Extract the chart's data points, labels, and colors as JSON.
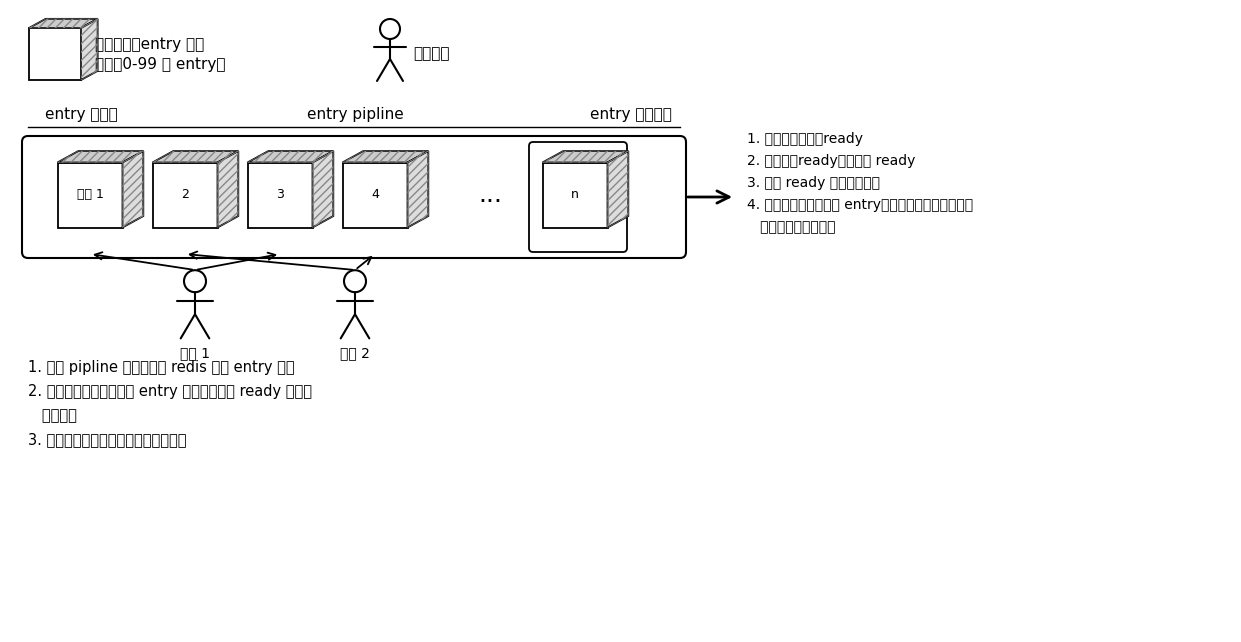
{
  "bg_color": "#ffffff",
  "legend_cube_text1": "一个有序的entry 批次",
  "legend_cube_text2": "（例如0-99 号 entry）",
  "legend_person_text": "一个协程",
  "pipeline_label_left": "entry 构造端",
  "pipeline_label_center": "entry pipline",
  "pipeline_label_right": "entry 序列化端",
  "box_labels": [
    "批次 1",
    "2",
    "3",
    "4",
    "n"
  ],
  "dots_label": "...",
  "coroutine_labels": [
    "协程 1",
    "协程 2"
  ],
  "right_notes_lines": [
    "1. 检查该批次是否ready",
    "2. 如果没有ready就等待其 ready",
    "3. 如果 ready 就开始序列化",
    "4. 序列化该批次的每个 entry完毕后通知构造该批次的",
    "   协程处理下一个批次"
  ],
  "bottom_notes_lines": [
    "1. 使用 pipline 的方式请求 redis 构造 entry 批次",
    "2. 构造完该批次的所有的 entry 后将其标记为 ready 并通知",
    "   序列化端",
    "3. 等待序列化端通知其处理下一个批次"
  ]
}
